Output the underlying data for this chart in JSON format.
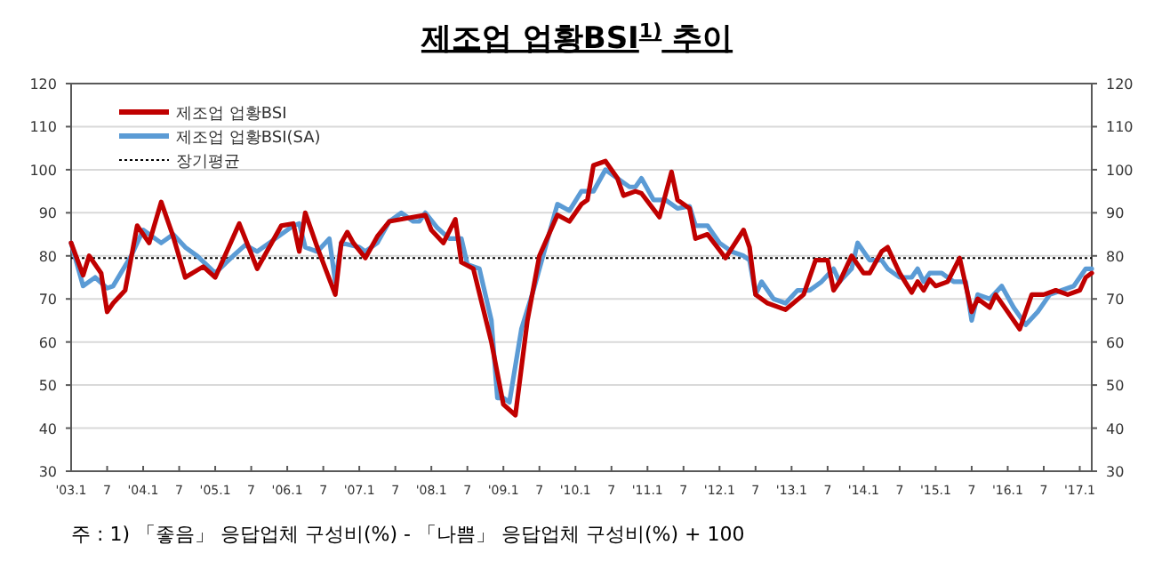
{
  "chart_data": {
    "type": "line",
    "title": "제조업 업황BSI$^{1)}$ 추이",
    "xlim": [
      "2003-01",
      "2017-03"
    ],
    "xticks": [
      {
        "value": "2003-01",
        "label": "'03.1"
      },
      {
        "value": "2003-07",
        "label": "7"
      },
      {
        "value": "2004-01",
        "label": "'04.1"
      },
      {
        "value": "2004-07",
        "label": "7"
      },
      {
        "value": "2005-01",
        "label": "'05.1"
      },
      {
        "value": "2005-07",
        "label": "7"
      },
      {
        "value": "2006-01",
        "label": "'06.1"
      },
      {
        "value": "2006-07",
        "label": "7"
      },
      {
        "value": "2007-01",
        "label": "'07.1"
      },
      {
        "value": "2007-07",
        "label": "7"
      },
      {
        "value": "2008-01",
        "label": "'08.1"
      },
      {
        "value": "2008-07",
        "label": "7"
      },
      {
        "value": "2009-01",
        "label": "'09.1"
      },
      {
        "value": "2009-07",
        "label": "7"
      },
      {
        "value": "2010-01",
        "label": "'10.1"
      },
      {
        "value": "2010-07",
        "label": "7"
      },
      {
        "value": "2011-01",
        "label": "'11.1"
      },
      {
        "value": "2011-07",
        "label": "7"
      },
      {
        "value": "2012-01",
        "label": "'12.1"
      },
      {
        "value": "2012-07",
        "label": "7"
      },
      {
        "value": "2013-01",
        "label": "'13.1"
      },
      {
        "value": "2013-07",
        "label": "7"
      },
      {
        "value": "2014-01",
        "label": "'14.1"
      },
      {
        "value": "2014-07",
        "label": "7"
      },
      {
        "value": "2015-01",
        "label": "'15.1"
      },
      {
        "value": "2015-07",
        "label": "7"
      },
      {
        "value": "2016-01",
        "label": "'16.1"
      },
      {
        "value": "2016-07",
        "label": "7"
      },
      {
        "value": "2017-01",
        "label": "'17.1"
      }
    ],
    "ylim": [
      30,
      120
    ],
    "yticks": [
      30,
      40,
      50,
      60,
      70,
      80,
      90,
      100,
      110,
      120
    ],
    "y2lim": [
      30,
      120
    ],
    "y2ticks": [
      30,
      40,
      50,
      60,
      70,
      80,
      90,
      100,
      110,
      120
    ],
    "grid": "y",
    "legend": "top left",
    "line_style": "solid",
    "marker": "none",
    "series": [
      {
        "name": "제조업 업황BSI",
        "color": "#c00000",
        "x": [
          "2003-01",
          "2003-03",
          "2003-04",
          "2003-06",
          "2003-07",
          "2003-08",
          "2003-10",
          "2003-12",
          "2004-02",
          "2004-04",
          "2004-06",
          "2004-08",
          "2004-11",
          "2005-01",
          "2005-05",
          "2005-08",
          "2005-12",
          "2006-02",
          "2006-03",
          "2006-04",
          "2006-06",
          "2006-09",
          "2006-10",
          "2006-11",
          "2006-12",
          "2007-02",
          "2007-04",
          "2007-06",
          "2007-12",
          "2008-01",
          "2008-03",
          "2008-05",
          "2008-06",
          "2008-08",
          "2008-11",
          "2009-01",
          "2009-03",
          "2009-05",
          "2009-07",
          "2009-10",
          "2009-12",
          "2010-02",
          "2010-03",
          "2010-04",
          "2010-06",
          "2010-08",
          "2010-09",
          "2010-11",
          "2010-12",
          "2011-03",
          "2011-05",
          "2011-06",
          "2011-08",
          "2011-09",
          "2011-11",
          "2012-02",
          "2012-05",
          "2012-06",
          "2012-07",
          "2012-09",
          "2012-12",
          "2013-03",
          "2013-05",
          "2013-07",
          "2013-08",
          "2013-09",
          "2013-11",
          "2014-01",
          "2014-02",
          "2014-04",
          "2014-05",
          "2014-07",
          "2014-09",
          "2014-10",
          "2014-11",
          "2014-12",
          "2015-01",
          "2015-03",
          "2015-05",
          "2015-07",
          "2015-08",
          "2015-10",
          "2015-11",
          "2016-01",
          "2016-03",
          "2016-05",
          "2016-07",
          "2016-09",
          "2016-11",
          "2017-01",
          "2017-02",
          "2017-03"
        ],
        "values": [
          83,
          75.5,
          80,
          76,
          67,
          69,
          72,
          87,
          83,
          92.5,
          84.5,
          75,
          77.5,
          75,
          87.5,
          77,
          87,
          87.5,
          81,
          90,
          82,
          71,
          83,
          85.5,
          83,
          79.5,
          84.5,
          88,
          89.5,
          86,
          83,
          88.5,
          78.5,
          77,
          60,
          45.5,
          43,
          65,
          80,
          89.5,
          88,
          92,
          93,
          101,
          102,
          98,
          94,
          95,
          94.5,
          89,
          99.5,
          93,
          91,
          84,
          85,
          79.5,
          86,
          82,
          71,
          69,
          67.5,
          71,
          79,
          79,
          72,
          74,
          80,
          76,
          76,
          81,
          82,
          76,
          71.5,
          74,
          72,
          74.5,
          73,
          74,
          79.5,
          67,
          70,
          68,
          71,
          67,
          63,
          71,
          71,
          72,
          71,
          72,
          75,
          76
        ]
      },
      {
        "name": "제조업 업황BSI(SA)",
        "color": "#5b9bd5",
        "x": [
          "2003-01",
          "2003-03",
          "2003-05",
          "2003-07",
          "2003-08",
          "2003-11",
          "2004-01",
          "2004-04",
          "2004-06",
          "2004-08",
          "2004-10",
          "2005-01",
          "2005-04",
          "2005-06",
          "2005-08",
          "2005-10",
          "2006-02",
          "2006-03",
          "2006-04",
          "2006-06",
          "2006-08",
          "2006-09",
          "2006-10",
          "2007-01",
          "2007-02",
          "2007-04",
          "2007-06",
          "2007-08",
          "2007-10",
          "2007-11",
          "2007-12",
          "2008-02",
          "2008-04",
          "2008-06",
          "2008-07",
          "2008-09",
          "2008-11",
          "2008-12",
          "2009-01",
          "2009-02",
          "2009-04",
          "2009-06",
          "2009-08",
          "2009-10",
          "2009-12",
          "2010-02",
          "2010-04",
          "2010-06",
          "2010-08",
          "2010-10",
          "2010-11",
          "2010-12",
          "2011-02",
          "2011-04",
          "2011-06",
          "2011-08",
          "2011-09",
          "2011-11",
          "2012-01",
          "2012-03",
          "2012-05",
          "2012-06",
          "2012-07",
          "2012-08",
          "2012-10",
          "2012-12",
          "2013-02",
          "2013-04",
          "2013-06",
          "2013-08",
          "2013-09",
          "2013-11",
          "2013-12",
          "2014-02",
          "2014-04",
          "2014-05",
          "2014-07",
          "2014-09",
          "2014-10",
          "2014-11",
          "2014-12",
          "2015-02",
          "2015-04",
          "2015-06",
          "2015-07",
          "2015-08",
          "2015-10",
          "2015-12",
          "2016-02",
          "2016-04",
          "2016-06",
          "2016-08",
          "2016-10",
          "2016-12",
          "2017-02",
          "2017-03"
        ],
        "values": [
          83,
          73,
          75,
          72.5,
          73,
          80,
          86,
          83,
          85,
          82,
          80,
          76,
          80,
          82.5,
          81,
          83,
          87,
          87.5,
          82,
          81,
          84,
          74,
          83,
          82,
          81,
          83,
          88,
          90,
          88,
          88,
          90,
          86.5,
          84,
          84,
          78,
          77,
          65,
          47,
          47,
          46,
          63,
          72,
          82,
          92,
          90.5,
          95,
          95,
          100,
          98,
          96,
          96,
          98,
          93,
          93,
          91,
          91.5,
          87,
          87,
          83,
          81,
          80,
          79,
          71,
          74,
          70,
          69,
          72,
          72,
          74,
          77,
          74,
          77,
          83,
          79,
          79,
          77,
          75,
          75,
          77,
          74,
          76,
          76,
          74,
          74,
          65,
          71,
          70,
          73,
          68,
          64,
          67,
          71,
          72,
          73,
          77,
          77
        ]
      }
    ],
    "ref_lines": [
      {
        "axis": "y",
        "value": 79.5,
        "label": "장기평균",
        "color": "#000000",
        "line_style": "dotted"
      }
    ],
    "annotations": [
      "주 : 1) 「좋음」 응답업체 구성비(%) - 「나쁨」 응답업체 구성비(%) + 100"
    ]
  }
}
